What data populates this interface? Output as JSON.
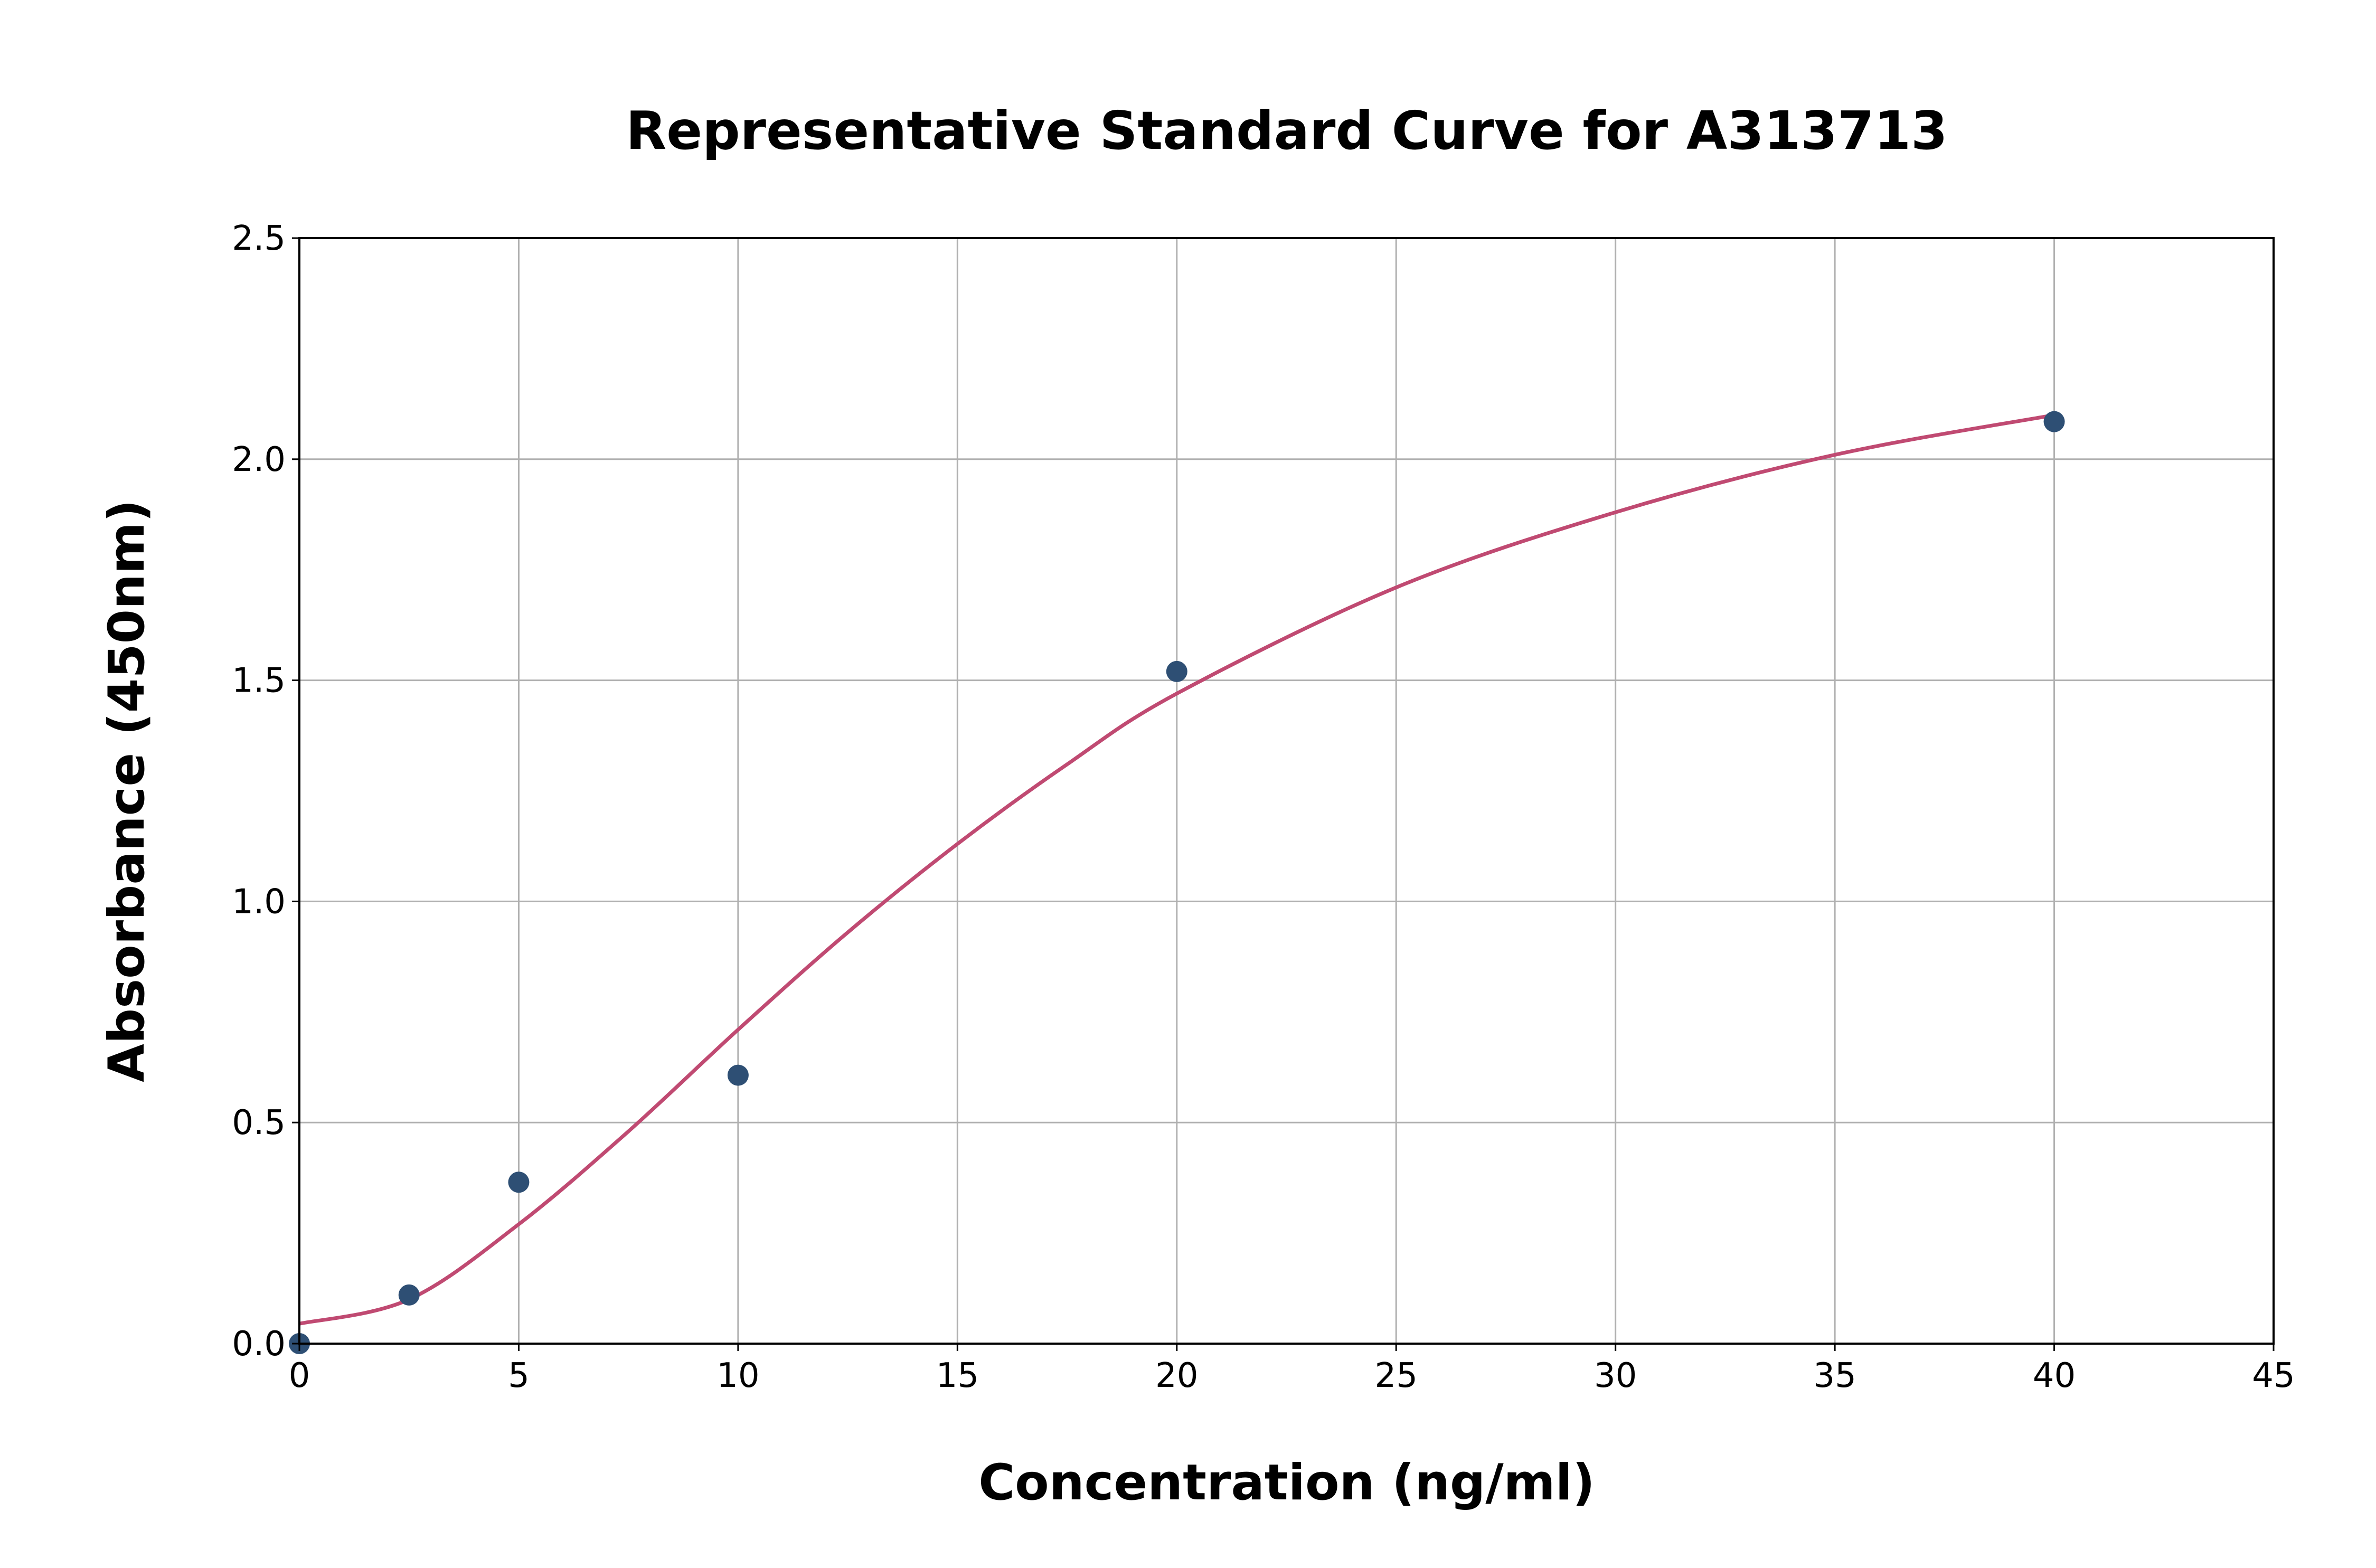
{
  "chart_data": {
    "type": "scatter",
    "title": "Representative Standard Curve for A313713",
    "xlabel": "Concentration (ng/ml)",
    "ylabel": "Absorbance (450nm)",
    "xlim": [
      0,
      45
    ],
    "ylim": [
      0,
      2.5
    ],
    "xticks": [
      "0",
      "5",
      "10",
      "15",
      "20",
      "25",
      "30",
      "35",
      "40",
      "45"
    ],
    "yticks": [
      "0.0",
      "0.5",
      "1.0",
      "1.5",
      "2.0",
      "2.5"
    ],
    "grid": true,
    "points": {
      "x": [
        0,
        2.5,
        5,
        10,
        20,
        40
      ],
      "y": [
        0.0,
        0.11,
        0.365,
        0.607,
        1.52,
        2.085
      ],
      "color": "#2e4f74"
    },
    "fit_curve": {
      "x": [
        0,
        2.5,
        5,
        7.5,
        10,
        12.5,
        15,
        17.5,
        20,
        25,
        30,
        35,
        40
      ],
      "y": [
        0.045,
        0.1,
        0.27,
        0.48,
        0.71,
        0.93,
        1.13,
        1.31,
        1.47,
        1.71,
        1.88,
        2.01,
        2.1
      ],
      "color": "#c04a72"
    }
  }
}
